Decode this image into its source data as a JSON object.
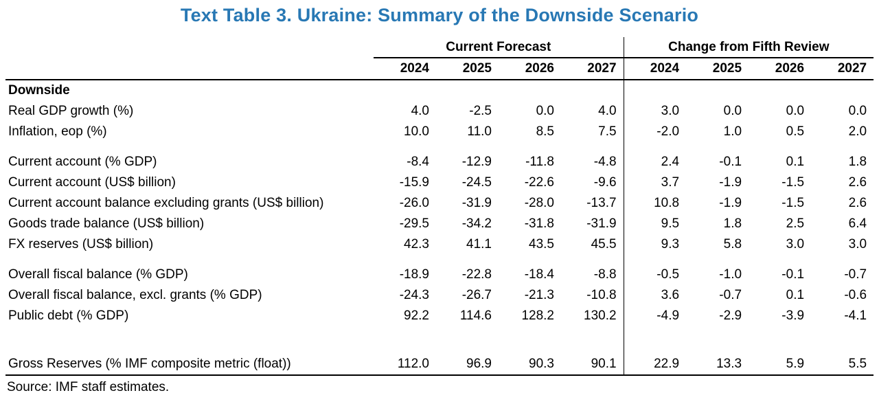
{
  "title": "Text Table 3. Ukraine: Summary of the Downside Scenario",
  "colors": {
    "title_blue": "#2878B4",
    "text": "#000000",
    "rule": "#000000"
  },
  "source": "Source: IMF staff estimates.",
  "table": {
    "groups": [
      {
        "label": "Current Forecast",
        "years": [
          "2024",
          "2025",
          "2026",
          "2027"
        ]
      },
      {
        "label": "Change from Fifth Review",
        "years": [
          "2024",
          "2025",
          "2026",
          "2027"
        ]
      }
    ],
    "rows": [
      {
        "type": "section",
        "label": "Downside"
      },
      {
        "type": "data",
        "label": "Real GDP growth (%)",
        "forecast": [
          "4.0",
          "-2.5",
          "0.0",
          "4.0"
        ],
        "change": [
          "3.0",
          "0.0",
          "0.0",
          "0.0"
        ]
      },
      {
        "type": "data",
        "label": "Inflation, eop (%)",
        "forecast": [
          "10.0",
          "11.0",
          "8.5",
          "7.5"
        ],
        "change": [
          "-2.0",
          "1.0",
          "0.5",
          "2.0"
        ]
      },
      {
        "type": "spacer"
      },
      {
        "type": "data",
        "label": "Current account (% GDP)",
        "forecast": [
          "-8.4",
          "-12.9",
          "-11.8",
          "-4.8"
        ],
        "change": [
          "2.4",
          "-0.1",
          "0.1",
          "1.8"
        ]
      },
      {
        "type": "data",
        "label": "Current account (US$ billion)",
        "forecast": [
          "-15.9",
          "-24.5",
          "-22.6",
          "-9.6"
        ],
        "change": [
          "3.7",
          "-1.9",
          "-1.5",
          "2.6"
        ]
      },
      {
        "type": "data",
        "label": "Current account balance excluding grants (US$ billion)",
        "forecast": [
          "-26.0",
          "-31.9",
          "-28.0",
          "-13.7"
        ],
        "change": [
          "10.8",
          "-1.9",
          "-1.5",
          "2.6"
        ]
      },
      {
        "type": "data",
        "label": "Goods trade balance (US$ billion)",
        "forecast": [
          "-29.5",
          "-34.2",
          "-31.8",
          "-31.9"
        ],
        "change": [
          "9.5",
          "1.8",
          "2.5",
          "6.4"
        ]
      },
      {
        "type": "data",
        "label": "FX reserves (US$ billion)",
        "forecast": [
          "42.3",
          "41.1",
          "43.5",
          "45.5"
        ],
        "change": [
          "9.3",
          "5.8",
          "3.0",
          "3.0"
        ]
      },
      {
        "type": "spacer"
      },
      {
        "type": "data",
        "label": "Overall fiscal balance (% GDP)",
        "forecast": [
          "-18.9",
          "-22.8",
          "-18.4",
          "-8.8"
        ],
        "change": [
          "-0.5",
          "-1.0",
          "-0.1",
          "-0.7"
        ]
      },
      {
        "type": "data",
        "label": "Overall fiscal balance, excl. grants (% GDP)",
        "forecast": [
          "-24.3",
          "-26.7",
          "-21.3",
          "-10.8"
        ],
        "change": [
          "3.6",
          "-0.7",
          "0.1",
          "-0.6"
        ]
      },
      {
        "type": "data",
        "label": "Public debt (% GDP)",
        "forecast": [
          "92.2",
          "114.6",
          "128.2",
          "130.2"
        ],
        "change": [
          "-4.9",
          "-2.9",
          "-3.9",
          "-4.1"
        ]
      },
      {
        "type": "spacer",
        "tall": true
      },
      {
        "type": "data",
        "label": "Gross Reserves (% IMF composite metric (float))",
        "forecast": [
          "112.0",
          "96.9",
          "90.3",
          "90.1"
        ],
        "change": [
          "22.9",
          "13.3",
          "5.9",
          "5.5"
        ]
      }
    ]
  }
}
